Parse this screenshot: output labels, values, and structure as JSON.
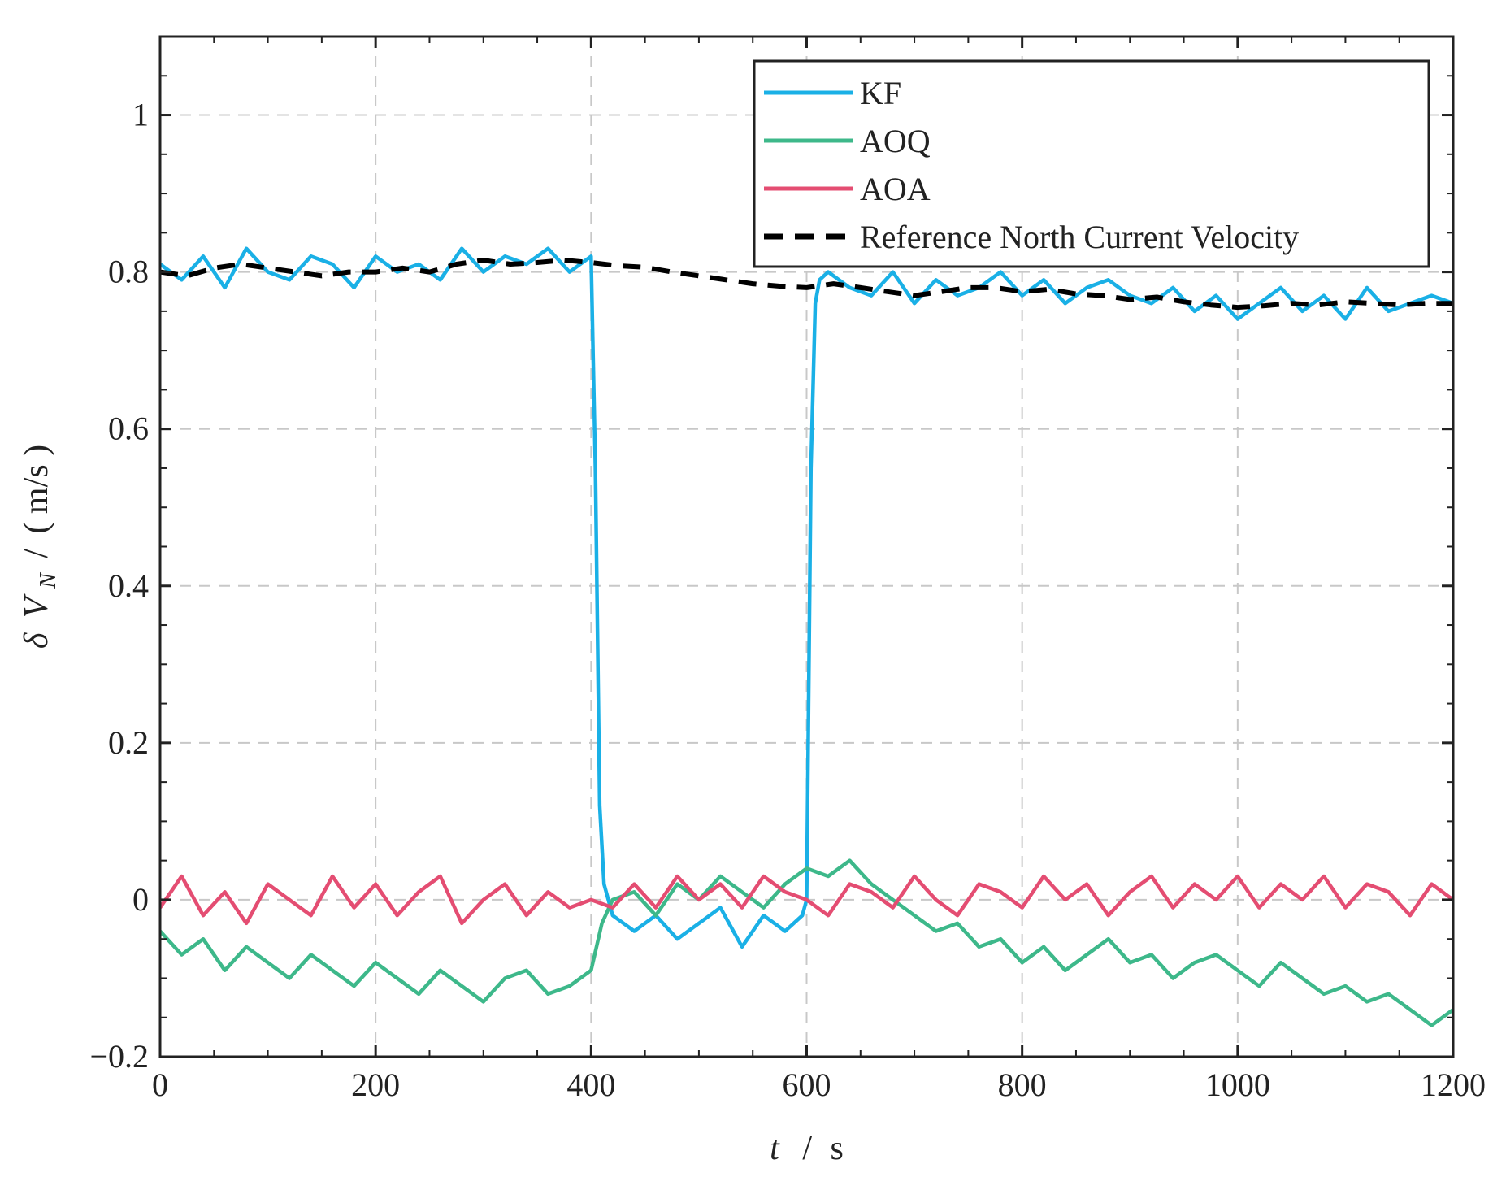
{
  "chart_data": {
    "type": "line",
    "title": "",
    "xlabel": {
      "var": "t",
      "sep": "/",
      "unit": "s"
    },
    "ylabel": {
      "delta": "δ",
      "var": "V",
      "sub": "N",
      "sep": "/",
      "unit": "( m/s )"
    },
    "xlim": [
      0,
      1200
    ],
    "ylim": [
      -0.2,
      1.1
    ],
    "xticks": [
      0,
      200,
      400,
      600,
      800,
      1000,
      1200
    ],
    "xtick_labels": [
      "0",
      "200",
      "400",
      "600",
      "800",
      "1000",
      "1200"
    ],
    "yticks": [
      -0.2,
      0,
      0.2,
      0.4,
      0.6,
      0.8,
      1
    ],
    "ytick_labels": [
      "−0.2",
      "0",
      "0.2",
      "0.4",
      "0.6",
      "0.8",
      "1"
    ],
    "grid": true,
    "legend_position": "top-right",
    "series": [
      {
        "name": "KF",
        "color": "#1AB0E6",
        "style": "solid",
        "x": [
          0,
          20,
          40,
          60,
          80,
          100,
          120,
          140,
          160,
          180,
          200,
          220,
          240,
          260,
          280,
          300,
          320,
          340,
          360,
          380,
          400,
          404,
          408,
          412,
          420,
          440,
          460,
          480,
          500,
          520,
          540,
          560,
          580,
          596,
          600,
          604,
          608,
          612,
          620,
          640,
          660,
          680,
          700,
          720,
          740,
          760,
          780,
          800,
          820,
          840,
          860,
          880,
          900,
          920,
          940,
          960,
          980,
          1000,
          1020,
          1040,
          1060,
          1080,
          1100,
          1120,
          1140,
          1160,
          1180,
          1200
        ],
        "y": [
          0.81,
          0.79,
          0.82,
          0.78,
          0.83,
          0.8,
          0.79,
          0.82,
          0.81,
          0.78,
          0.82,
          0.8,
          0.81,
          0.79,
          0.83,
          0.8,
          0.82,
          0.81,
          0.83,
          0.8,
          0.82,
          0.55,
          0.12,
          0.02,
          -0.02,
          -0.04,
          -0.02,
          -0.05,
          -0.03,
          -0.01,
          -0.06,
          -0.02,
          -0.04,
          -0.02,
          0.0,
          0.55,
          0.76,
          0.79,
          0.8,
          0.78,
          0.77,
          0.8,
          0.76,
          0.79,
          0.77,
          0.78,
          0.8,
          0.77,
          0.79,
          0.76,
          0.78,
          0.79,
          0.77,
          0.76,
          0.78,
          0.75,
          0.77,
          0.74,
          0.76,
          0.78,
          0.75,
          0.77,
          0.74,
          0.78,
          0.75,
          0.76,
          0.77,
          0.76
        ]
      },
      {
        "name": "AOQ",
        "color": "#3DB88A",
        "style": "solid",
        "x": [
          0,
          20,
          40,
          60,
          80,
          100,
          120,
          140,
          160,
          180,
          200,
          220,
          240,
          260,
          280,
          300,
          320,
          340,
          360,
          380,
          400,
          410,
          420,
          440,
          460,
          480,
          500,
          520,
          540,
          560,
          580,
          600,
          620,
          640,
          660,
          680,
          700,
          720,
          740,
          760,
          780,
          800,
          820,
          840,
          860,
          880,
          900,
          920,
          940,
          960,
          980,
          1000,
          1020,
          1040,
          1060,
          1080,
          1100,
          1120,
          1140,
          1160,
          1180,
          1200
        ],
        "y": [
          -0.04,
          -0.07,
          -0.05,
          -0.09,
          -0.06,
          -0.08,
          -0.1,
          -0.07,
          -0.09,
          -0.11,
          -0.08,
          -0.1,
          -0.12,
          -0.09,
          -0.11,
          -0.13,
          -0.1,
          -0.09,
          -0.12,
          -0.11,
          -0.09,
          -0.03,
          0.0,
          0.01,
          -0.02,
          0.02,
          0.0,
          0.03,
          0.01,
          -0.01,
          0.02,
          0.04,
          0.03,
          0.05,
          0.02,
          0.0,
          -0.02,
          -0.04,
          -0.03,
          -0.06,
          -0.05,
          -0.08,
          -0.06,
          -0.09,
          -0.07,
          -0.05,
          -0.08,
          -0.07,
          -0.1,
          -0.08,
          -0.07,
          -0.09,
          -0.11,
          -0.08,
          -0.1,
          -0.12,
          -0.11,
          -0.13,
          -0.12,
          -0.14,
          -0.16,
          -0.14
        ]
      },
      {
        "name": "AOA",
        "color": "#E44D72",
        "style": "solid",
        "x": [
          0,
          20,
          40,
          60,
          80,
          100,
          120,
          140,
          160,
          180,
          200,
          220,
          240,
          260,
          280,
          300,
          320,
          340,
          360,
          380,
          400,
          420,
          440,
          460,
          480,
          500,
          520,
          540,
          560,
          580,
          600,
          620,
          640,
          660,
          680,
          700,
          720,
          740,
          760,
          780,
          800,
          820,
          840,
          860,
          880,
          900,
          920,
          940,
          960,
          980,
          1000,
          1020,
          1040,
          1060,
          1080,
          1100,
          1120,
          1140,
          1160,
          1180,
          1200
        ],
        "y": [
          -0.01,
          0.03,
          -0.02,
          0.01,
          -0.03,
          0.02,
          0.0,
          -0.02,
          0.03,
          -0.01,
          0.02,
          -0.02,
          0.01,
          0.03,
          -0.03,
          0.0,
          0.02,
          -0.02,
          0.01,
          -0.01,
          0.0,
          -0.01,
          0.02,
          -0.01,
          0.03,
          0.0,
          0.02,
          -0.01,
          0.03,
          0.01,
          0.0,
          -0.02,
          0.02,
          0.01,
          -0.01,
          0.03,
          0.0,
          -0.02,
          0.02,
          0.01,
          -0.01,
          0.03,
          0.0,
          0.02,
          -0.02,
          0.01,
          0.03,
          -0.01,
          0.02,
          0.0,
          0.03,
          -0.01,
          0.02,
          0.0,
          0.03,
          -0.01,
          0.02,
          0.01,
          -0.02,
          0.02,
          0.0
        ]
      },
      {
        "name": "Reference North Current Velocity",
        "color": "#000000",
        "style": "dashed",
        "x": [
          0,
          25,
          50,
          75,
          100,
          125,
          150,
          175,
          200,
          225,
          250,
          275,
          300,
          325,
          350,
          375,
          400,
          425,
          450,
          475,
          500,
          525,
          550,
          575,
          600,
          625,
          650,
          675,
          700,
          725,
          750,
          775,
          800,
          825,
          850,
          875,
          900,
          925,
          950,
          975,
          1000,
          1025,
          1050,
          1075,
          1100,
          1125,
          1150,
          1175,
          1200
        ],
        "y": [
          0.8,
          0.795,
          0.805,
          0.81,
          0.805,
          0.8,
          0.795,
          0.8,
          0.8,
          0.805,
          0.8,
          0.81,
          0.815,
          0.81,
          0.812,
          0.815,
          0.812,
          0.808,
          0.806,
          0.8,
          0.795,
          0.79,
          0.785,
          0.782,
          0.78,
          0.785,
          0.78,
          0.775,
          0.77,
          0.775,
          0.78,
          0.78,
          0.775,
          0.778,
          0.772,
          0.77,
          0.765,
          0.768,
          0.762,
          0.758,
          0.755,
          0.757,
          0.76,
          0.758,
          0.762,
          0.76,
          0.758,
          0.76,
          0.76
        ]
      }
    ]
  }
}
